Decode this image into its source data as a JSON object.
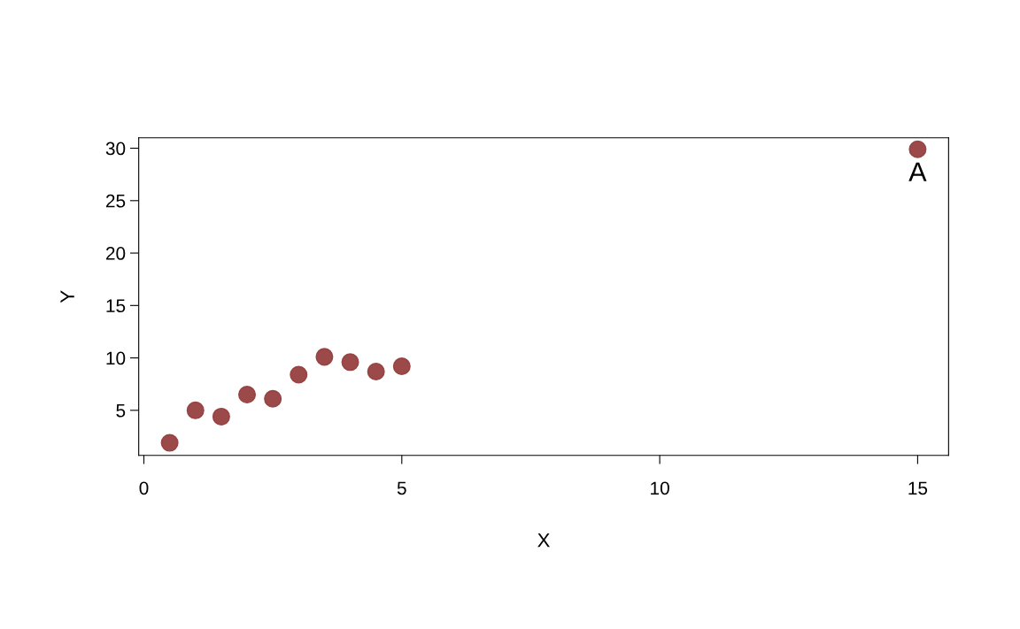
{
  "chart_data": {
    "type": "scatter",
    "xlabel": "X",
    "ylabel": "Y",
    "x": [
      0.5,
      1,
      1.5,
      2,
      2.5,
      3,
      3.5,
      4,
      4.5,
      5,
      15
    ],
    "series": [
      {
        "color": "#963f3f",
        "values": [
          1.9,
          5.0,
          4.4,
          6.5,
          6.1,
          8.4,
          10.1,
          9.6,
          8.7,
          9.2,
          29.9
        ]
      }
    ],
    "xlim": [
      -0.1,
      15.6
    ],
    "ylim": [
      0.7,
      31
    ],
    "xticks": [
      0,
      5,
      10,
      15
    ],
    "yticks": [
      5,
      10,
      15,
      20,
      25,
      30
    ],
    "annotations": [
      {
        "text": "A",
        "x": 15,
        "y": 29.9
      }
    ],
    "grid": false,
    "legend": false,
    "marker": "circle"
  }
}
